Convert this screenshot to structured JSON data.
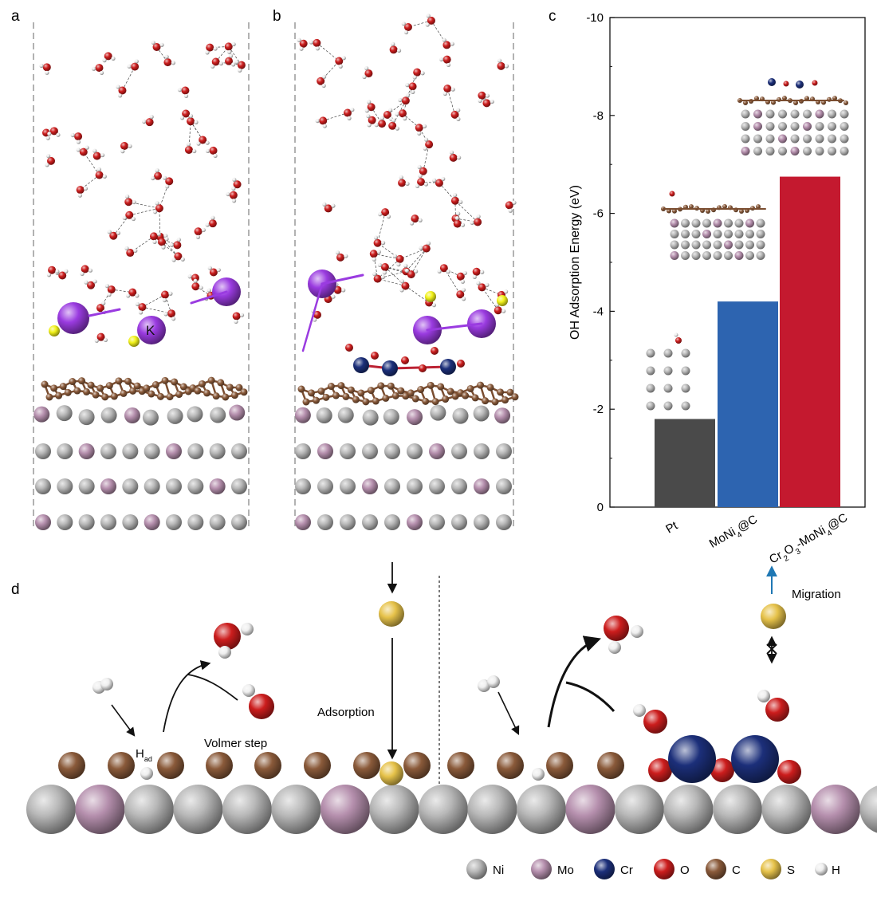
{
  "panels": {
    "a": {
      "letter": "a",
      "atom_label": "K"
    },
    "b": {
      "letter": "b"
    },
    "c": {
      "letter": "c"
    },
    "d": {
      "letter": "d"
    }
  },
  "colors": {
    "ni": "#b8b8b8",
    "mo": "#b58fad",
    "cr": "#1c2f7a",
    "o": "#cc1d1d",
    "c": "#8a5a3a",
    "s": "#e6c24a",
    "h": "#efefef",
    "k": "#9a3be0",
    "s_bright": "#f2f21a",
    "bar_pt": "#4a4a4a",
    "bar_moni": "#2d64b0",
    "bar_cr": "#c4192f",
    "migration_arrow": "#1f78b4"
  },
  "chart_data": {
    "type": "bar",
    "categories": [
      "Pt",
      "MoNi4@C",
      "Cr2O3-MoNi4@C"
    ],
    "values": [
      -1.8,
      -4.2,
      -6.75
    ],
    "ylabel": "OH Adsorption Energy (eV)",
    "ylim": [
      0,
      -10
    ],
    "yticks": [
      0,
      -2,
      -4,
      -6,
      -8,
      -10
    ],
    "ytick_labels": [
      "0",
      "-2",
      "-4",
      "-6",
      "-8",
      "-10"
    ],
    "tick_labels": {
      "pt": "Pt",
      "moni_main": "MoNi",
      "moni_sub": "4",
      "moni_tail": "@C",
      "cr_main": "Cr",
      "cr_sub1": "2",
      "cr_o": "O",
      "cr_sub2": "3",
      "cr_mid": "-MoNi",
      "cr_sub3": "4",
      "cr_tail": "@C"
    }
  },
  "schematic": {
    "h_ad_main": "H",
    "h_ad_sub": "ad",
    "volmer": "Volmer step",
    "adsorption": "Adsorption",
    "migration": "Migration"
  },
  "legend": [
    {
      "label": "Ni",
      "color": "#b8b8b8"
    },
    {
      "label": "Mo",
      "color": "#b58fad"
    },
    {
      "label": "Cr",
      "color": "#1c2f7a"
    },
    {
      "label": "O",
      "color": "#cc1d1d"
    },
    {
      "label": "C",
      "color": "#8a5a3a"
    },
    {
      "label": "S",
      "color": "#e6c24a"
    },
    {
      "label": "H",
      "color": "#efefef"
    }
  ]
}
